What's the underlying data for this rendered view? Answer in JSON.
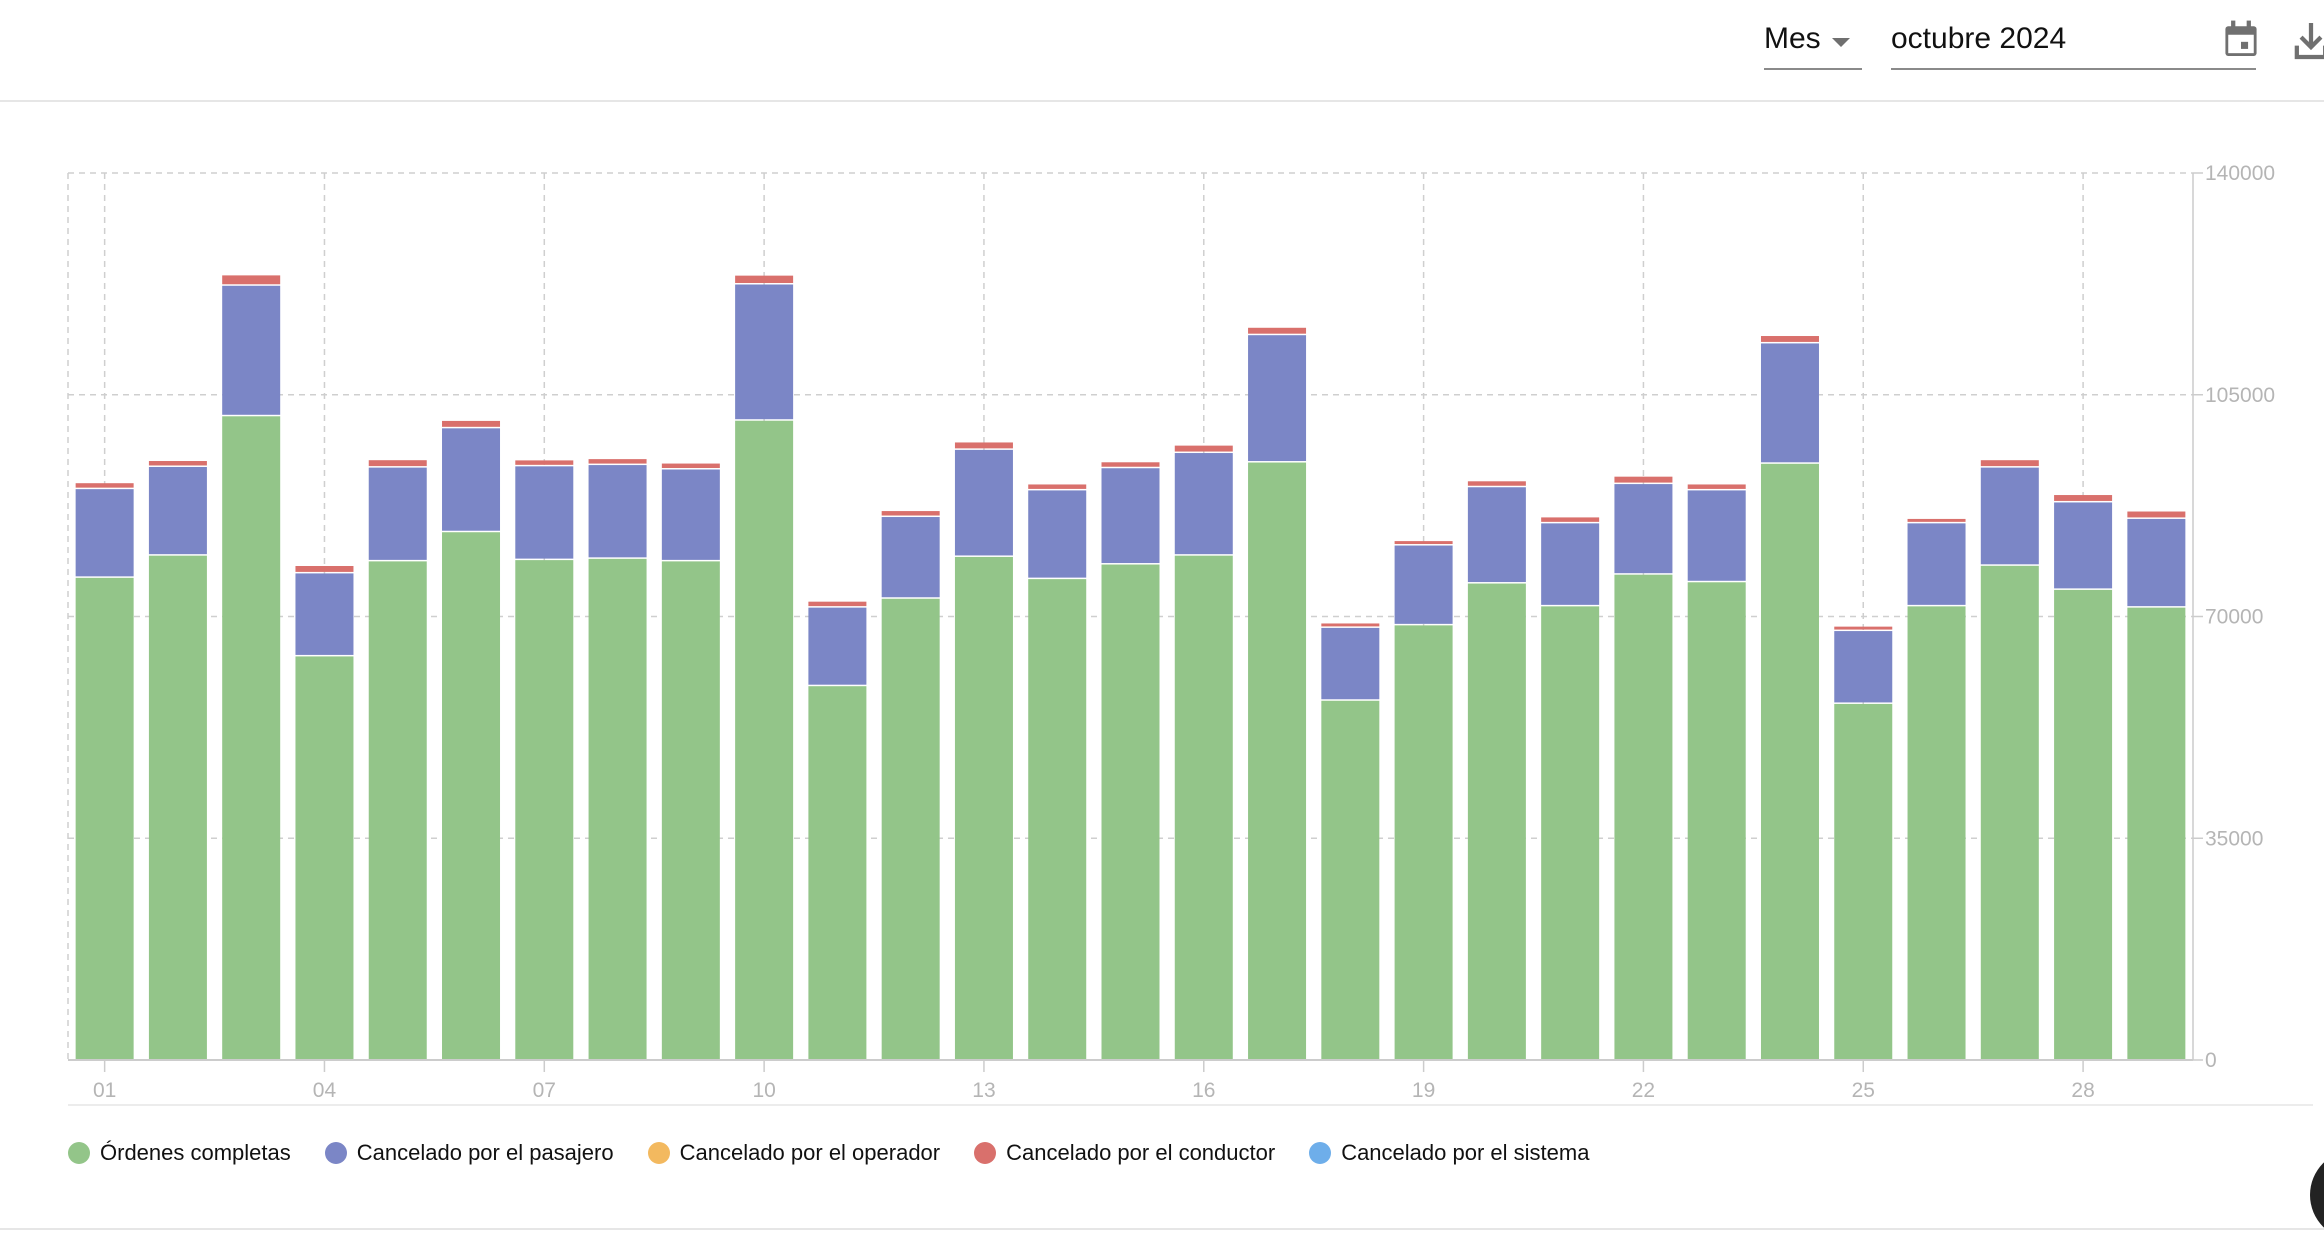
{
  "toolbar": {
    "period_select": "Mes",
    "date_value": "octubre 2024",
    "calendar_icon": "calendar-icon",
    "download_icon": "download-icon"
  },
  "chart_data": {
    "type": "bar",
    "stacked": true,
    "categories": [
      "01",
      "02",
      "03",
      "04",
      "05",
      "06",
      "07",
      "08",
      "09",
      "10",
      "11",
      "12",
      "13",
      "14",
      "15",
      "16",
      "17",
      "18",
      "19",
      "20",
      "21",
      "22",
      "23",
      "24",
      "25",
      "26",
      "27",
      "28",
      "29"
    ],
    "x_tick_labels": [
      "01",
      "04",
      "07",
      "10",
      "13",
      "16",
      "19",
      "22",
      "25",
      "28"
    ],
    "y_ticks": [
      "0",
      "35000",
      "70000",
      "105000",
      "140000"
    ],
    "ylim": [
      0,
      140000
    ],
    "y_axis_position": "right",
    "grid": true,
    "legend_position": "bottom-left",
    "series": [
      {
        "name": "Órdenes completas",
        "color": "#93c589",
        "values": [
          76100,
          79600,
          101600,
          63700,
          78700,
          83300,
          78900,
          79100,
          78700,
          100900,
          59000,
          72800,
          79400,
          75900,
          78200,
          79600,
          94300,
          56700,
          68600,
          75200,
          71600,
          76600,
          75400,
          94100,
          56200,
          71600,
          78000,
          74200,
          71400
        ]
      },
      {
        "name": "Cancelado por el pasajero",
        "color": "#7b86c6",
        "values": [
          14000,
          14000,
          20600,
          13100,
          14800,
          16400,
          14800,
          14800,
          14500,
          21500,
          12400,
          12900,
          16900,
          14000,
          15200,
          16200,
          20100,
          11500,
          12600,
          15200,
          13100,
          14300,
          14500,
          19000,
          11500,
          13100,
          15500,
          13800,
          14000
        ]
      },
      {
        "name": "Cancelado por el operador",
        "color": "#f3b95f",
        "values": [
          0,
          0,
          0,
          0,
          0,
          0,
          0,
          0,
          0,
          0,
          0,
          0,
          0,
          0,
          0,
          0,
          0,
          0,
          0,
          0,
          0,
          0,
          0,
          0,
          0,
          0,
          0,
          0,
          0
        ]
      },
      {
        "name": "Cancelado por el conductor",
        "color": "#d9706c",
        "values": [
          940,
          940,
          1640,
          1170,
          1170,
          1170,
          940,
          940,
          940,
          1400,
          940,
          940,
          1170,
          940,
          940,
          1170,
          1170,
          700,
          700,
          940,
          940,
          1170,
          940,
          1170,
          700,
          700,
          1170,
          1170,
          1170
        ]
      },
      {
        "name": "Cancelado por el sistema",
        "color": "#6eaeea",
        "values": [
          0,
          0,
          0,
          0,
          0,
          0,
          0,
          0,
          0,
          0,
          0,
          0,
          0,
          0,
          0,
          0,
          0,
          0,
          0,
          0,
          0,
          0,
          0,
          0,
          0,
          0,
          0,
          0,
          0
        ]
      }
    ]
  }
}
